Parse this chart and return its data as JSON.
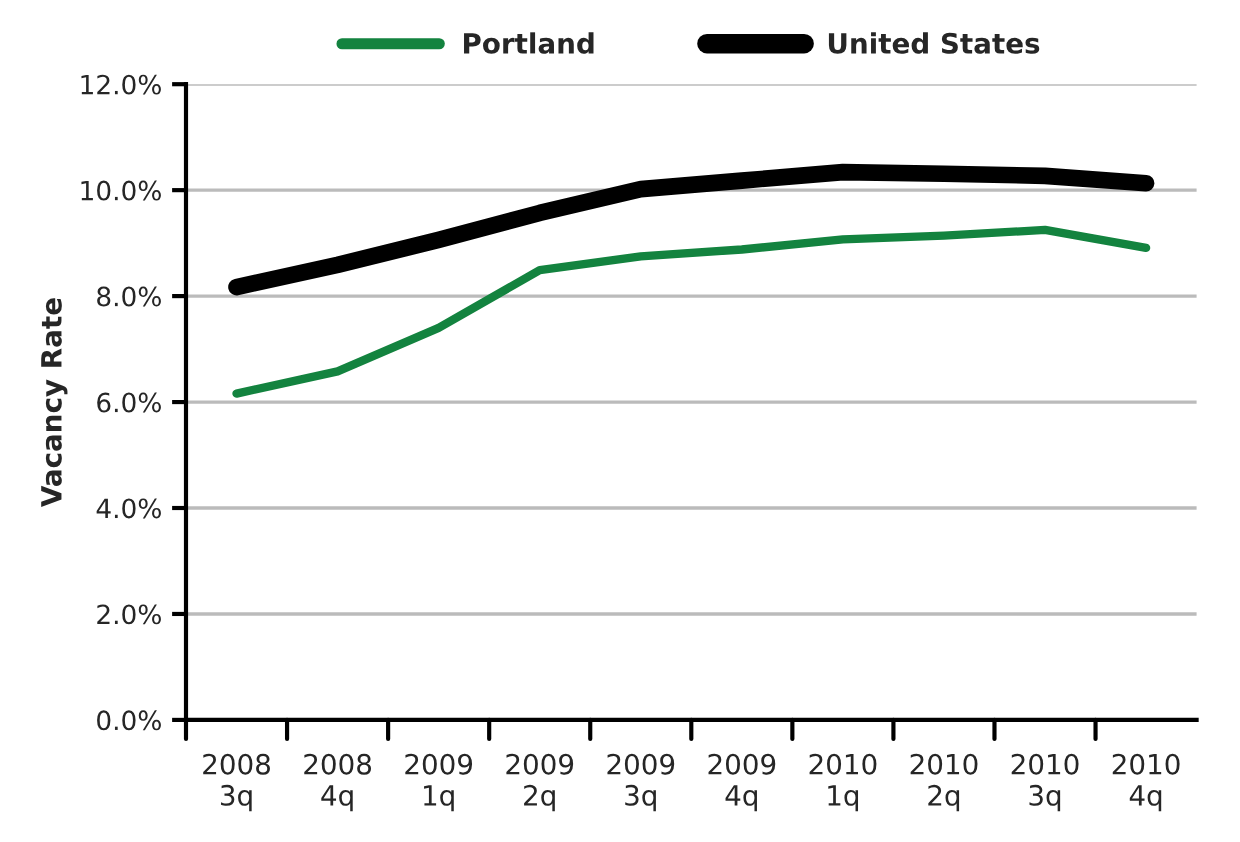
{
  "chart_data": {
    "type": "line",
    "ylabel": "Vacancy Rate",
    "categories": [
      "2008\n3q",
      "2008\n4q",
      "2009\n1q",
      "2009\n2q",
      "2009\n3q",
      "2009\n4q",
      "2010\n1q",
      "2010\n2q",
      "2010\n3q",
      "2010\n4q"
    ],
    "series": [
      {
        "name": "Portland",
        "color": "#13833f",
        "values": [
          6.16,
          6.58,
          7.4,
          8.49,
          8.75,
          8.88,
          9.07,
          9.14,
          9.25,
          8.91
        ]
      },
      {
        "name": "United States",
        "color": "#000000",
        "values": [
          8.17,
          8.59,
          9.06,
          9.57,
          10.02,
          10.18,
          10.34,
          10.31,
          10.27,
          10.13
        ]
      }
    ],
    "ylim": [
      0,
      12
    ],
    "yticks": [
      {
        "value": 0,
        "label": "0.0%"
      },
      {
        "value": 2,
        "label": "2.0%"
      },
      {
        "value": 4,
        "label": "4.0%"
      },
      {
        "value": 6,
        "label": "6.0%"
      },
      {
        "value": 8,
        "label": "8.0%"
      },
      {
        "value": 10,
        "label": "10.0%"
      },
      {
        "value": 12,
        "label": "12.0%"
      }
    ],
    "grid": "y",
    "legend": "top",
    "marker": "none",
    "line_style": "solid"
  }
}
